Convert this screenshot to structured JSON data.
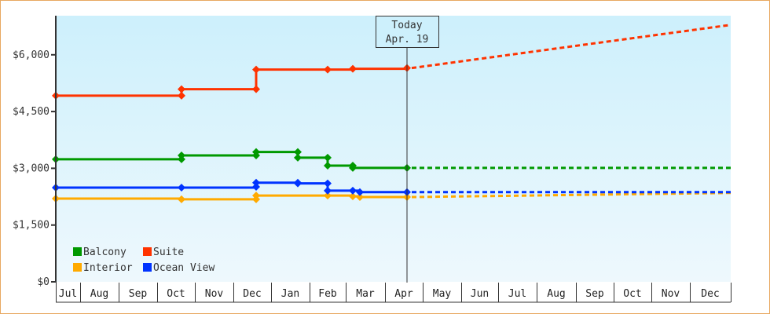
{
  "chart_data": {
    "type": "line",
    "title": "",
    "xlabel": "",
    "ylabel": "",
    "ylim": [
      0,
      7000
    ],
    "yticks": [
      {
        "value": 0,
        "label": "$0"
      },
      {
        "value": 1500,
        "label": "$1,500"
      },
      {
        "value": 3000,
        "label": "$3,000"
      },
      {
        "value": 4500,
        "label": "$4,500"
      },
      {
        "value": 6000,
        "label": "$6,000"
      }
    ],
    "categories": [
      "Jul",
      "Aug",
      "Sep",
      "Oct",
      "Nov",
      "Dec",
      "Jan",
      "Feb",
      "Mar",
      "Apr",
      "May",
      "Jun",
      "Jul",
      "Aug",
      "Sep",
      "Oct",
      "Nov",
      "Dec"
    ],
    "grid": false,
    "legend_position": "bottom-left inside",
    "today_marker": {
      "line1": "Today",
      "line2": "Apr. 19"
    },
    "series": [
      {
        "name": "Suite",
        "color": "#ff3300",
        "points": [
          {
            "x": "Jul",
            "y": 4920
          },
          {
            "x": "Oct",
            "y": 4920
          },
          {
            "x": "Oct",
            "y": 5090
          },
          {
            "x": "Dec",
            "y": 5090
          },
          {
            "x": "Dec",
            "y": 5610
          },
          {
            "x": "Feb",
            "y": 5610
          },
          {
            "x": "Mar",
            "y": 5630
          },
          {
            "x": "Apr 19",
            "y": 5650
          }
        ],
        "projection": [
          {
            "x": "Apr 19",
            "y": 5650
          },
          {
            "x": "Dec end",
            "y": 6790
          }
        ]
      },
      {
        "name": "Balcony",
        "color": "#009900",
        "points": [
          {
            "x": "Jul",
            "y": 3240
          },
          {
            "x": "Oct",
            "y": 3240
          },
          {
            "x": "Oct",
            "y": 3340
          },
          {
            "x": "Dec",
            "y": 3340
          },
          {
            "x": "Dec",
            "y": 3430
          },
          {
            "x": "Jan",
            "y": 3430
          },
          {
            "x": "Jan",
            "y": 3280
          },
          {
            "x": "Feb",
            "y": 3280
          },
          {
            "x": "Feb",
            "y": 3070
          },
          {
            "x": "Mar",
            "y": 3070
          },
          {
            "x": "Mar",
            "y": 3010
          },
          {
            "x": "Apr 19",
            "y": 3010
          }
        ],
        "projection": [
          {
            "x": "Apr 19",
            "y": 3010
          },
          {
            "x": "Dec end",
            "y": 3010
          }
        ]
      },
      {
        "name": "Ocean View",
        "color": "#0033ff",
        "points": [
          {
            "x": "Jul",
            "y": 2490
          },
          {
            "x": "Oct",
            "y": 2490
          },
          {
            "x": "Dec",
            "y": 2510
          },
          {
            "x": "Dec",
            "y": 2620
          },
          {
            "x": "Jan",
            "y": 2620
          },
          {
            "x": "Jan",
            "y": 2600
          },
          {
            "x": "Feb",
            "y": 2600
          },
          {
            "x": "Feb",
            "y": 2410
          },
          {
            "x": "Mar",
            "y": 2410
          },
          {
            "x": "Mar",
            "y": 2370
          },
          {
            "x": "Apr 19",
            "y": 2370
          }
        ],
        "projection": [
          {
            "x": "Apr 19",
            "y": 2370
          },
          {
            "x": "Dec end",
            "y": 2370
          }
        ]
      },
      {
        "name": "Interior",
        "color": "#ffaa00",
        "points": [
          {
            "x": "Jul",
            "y": 2200
          },
          {
            "x": "Oct",
            "y": 2180
          },
          {
            "x": "Dec",
            "y": 2180
          },
          {
            "x": "Dec",
            "y": 2280
          },
          {
            "x": "Feb",
            "y": 2280
          },
          {
            "x": "Mar",
            "y": 2260
          },
          {
            "x": "Mar",
            "y": 2240
          },
          {
            "x": "Apr 19",
            "y": 2240
          }
        ],
        "projection": [
          {
            "x": "Apr 19",
            "y": 2240
          },
          {
            "x": "Dec end",
            "y": 2350
          }
        ]
      }
    ]
  },
  "legend": {
    "items": [
      {
        "label": "Balcony",
        "color": "#009900"
      },
      {
        "label": "Suite",
        "color": "#ff3300"
      },
      {
        "label": "Interior",
        "color": "#ffaa00"
      },
      {
        "label": "Ocean View",
        "color": "#0033ff"
      }
    ]
  },
  "colors": {
    "frame_border": "#e8a860",
    "plot_bg_top": "#cdf0fc",
    "plot_bg_bottom": "#eef8fd",
    "axis": "#333333"
  }
}
